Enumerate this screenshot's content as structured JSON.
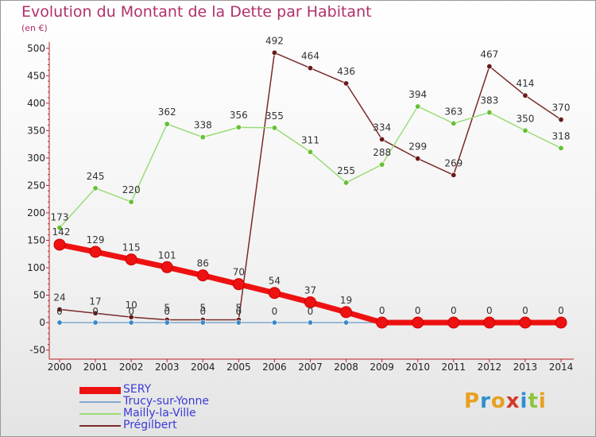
{
  "title": "Evolution du Montant de la Dette par Habitant",
  "subtitle": "(en €)",
  "logo": {
    "text": "Proxiti",
    "colors": [
      "#e8a020",
      "#2e8fd0",
      "#e8a020",
      "#d23a2a",
      "#2e8fd0",
      "#8cc43c",
      "#e8a020"
    ]
  },
  "chart_data": {
    "type": "line",
    "x": [
      "2000",
      "2001",
      "2002",
      "2003",
      "2004",
      "2005",
      "2006",
      "2007",
      "2008",
      "2009",
      "2010",
      "2011",
      "2012",
      "2013",
      "2014"
    ],
    "ylim": [
      -50,
      500
    ],
    "yticks": [
      -50,
      0,
      50,
      100,
      150,
      200,
      250,
      300,
      350,
      400,
      450,
      500
    ],
    "grid": false,
    "legend_position": "bottom-left",
    "series": [
      {
        "name": "SERY",
        "color": "#ee1111",
        "marker": "#ee1111",
        "values": [
          142,
          129,
          115,
          101,
          86,
          70,
          54,
          37,
          19,
          0,
          0,
          0,
          0,
          0,
          0
        ],
        "labels": [
          "142",
          "129",
          "115",
          "101",
          "86",
          "70",
          "54",
          "37",
          "19",
          "0",
          "0",
          "0",
          "0",
          "0",
          "0"
        ]
      },
      {
        "name": "Trucy-sur-Yonne",
        "color": "#7fa8d0",
        "marker": "#3a88c8",
        "values": [
          0,
          0,
          0,
          0,
          0,
          0,
          0,
          0,
          0,
          0,
          0,
          0,
          0,
          0,
          0
        ],
        "labels": [
          "0",
          "0",
          "0",
          "0",
          "0",
          "0",
          "0",
          "0",
          "",
          "",
          "",
          "",
          "",
          "",
          ""
        ]
      },
      {
        "name": "Mailly-la-Ville",
        "color": "#99dd77",
        "marker": "#66c033",
        "values": [
          173,
          245,
          220,
          362,
          338,
          356,
          355,
          311,
          255,
          288,
          394,
          363,
          383,
          350,
          318
        ],
        "labels": [
          "173",
          "245",
          "220",
          "362",
          "338",
          "356",
          "355",
          "311",
          "255",
          "288",
          "394",
          "363",
          "383",
          "350",
          "318"
        ]
      },
      {
        "name": "Prégilbert",
        "color": "#7a2a2a",
        "marker": "#6a1a1a",
        "values": [
          24,
          17,
          10,
          5,
          5,
          5,
          492,
          464,
          436,
          334,
          299,
          269,
          467,
          414,
          370
        ],
        "labels": [
          "24",
          "17",
          "10",
          "5",
          "5",
          "5",
          "492",
          "464",
          "436",
          "334",
          "299",
          "269",
          "467",
          "414",
          "370"
        ]
      }
    ]
  }
}
